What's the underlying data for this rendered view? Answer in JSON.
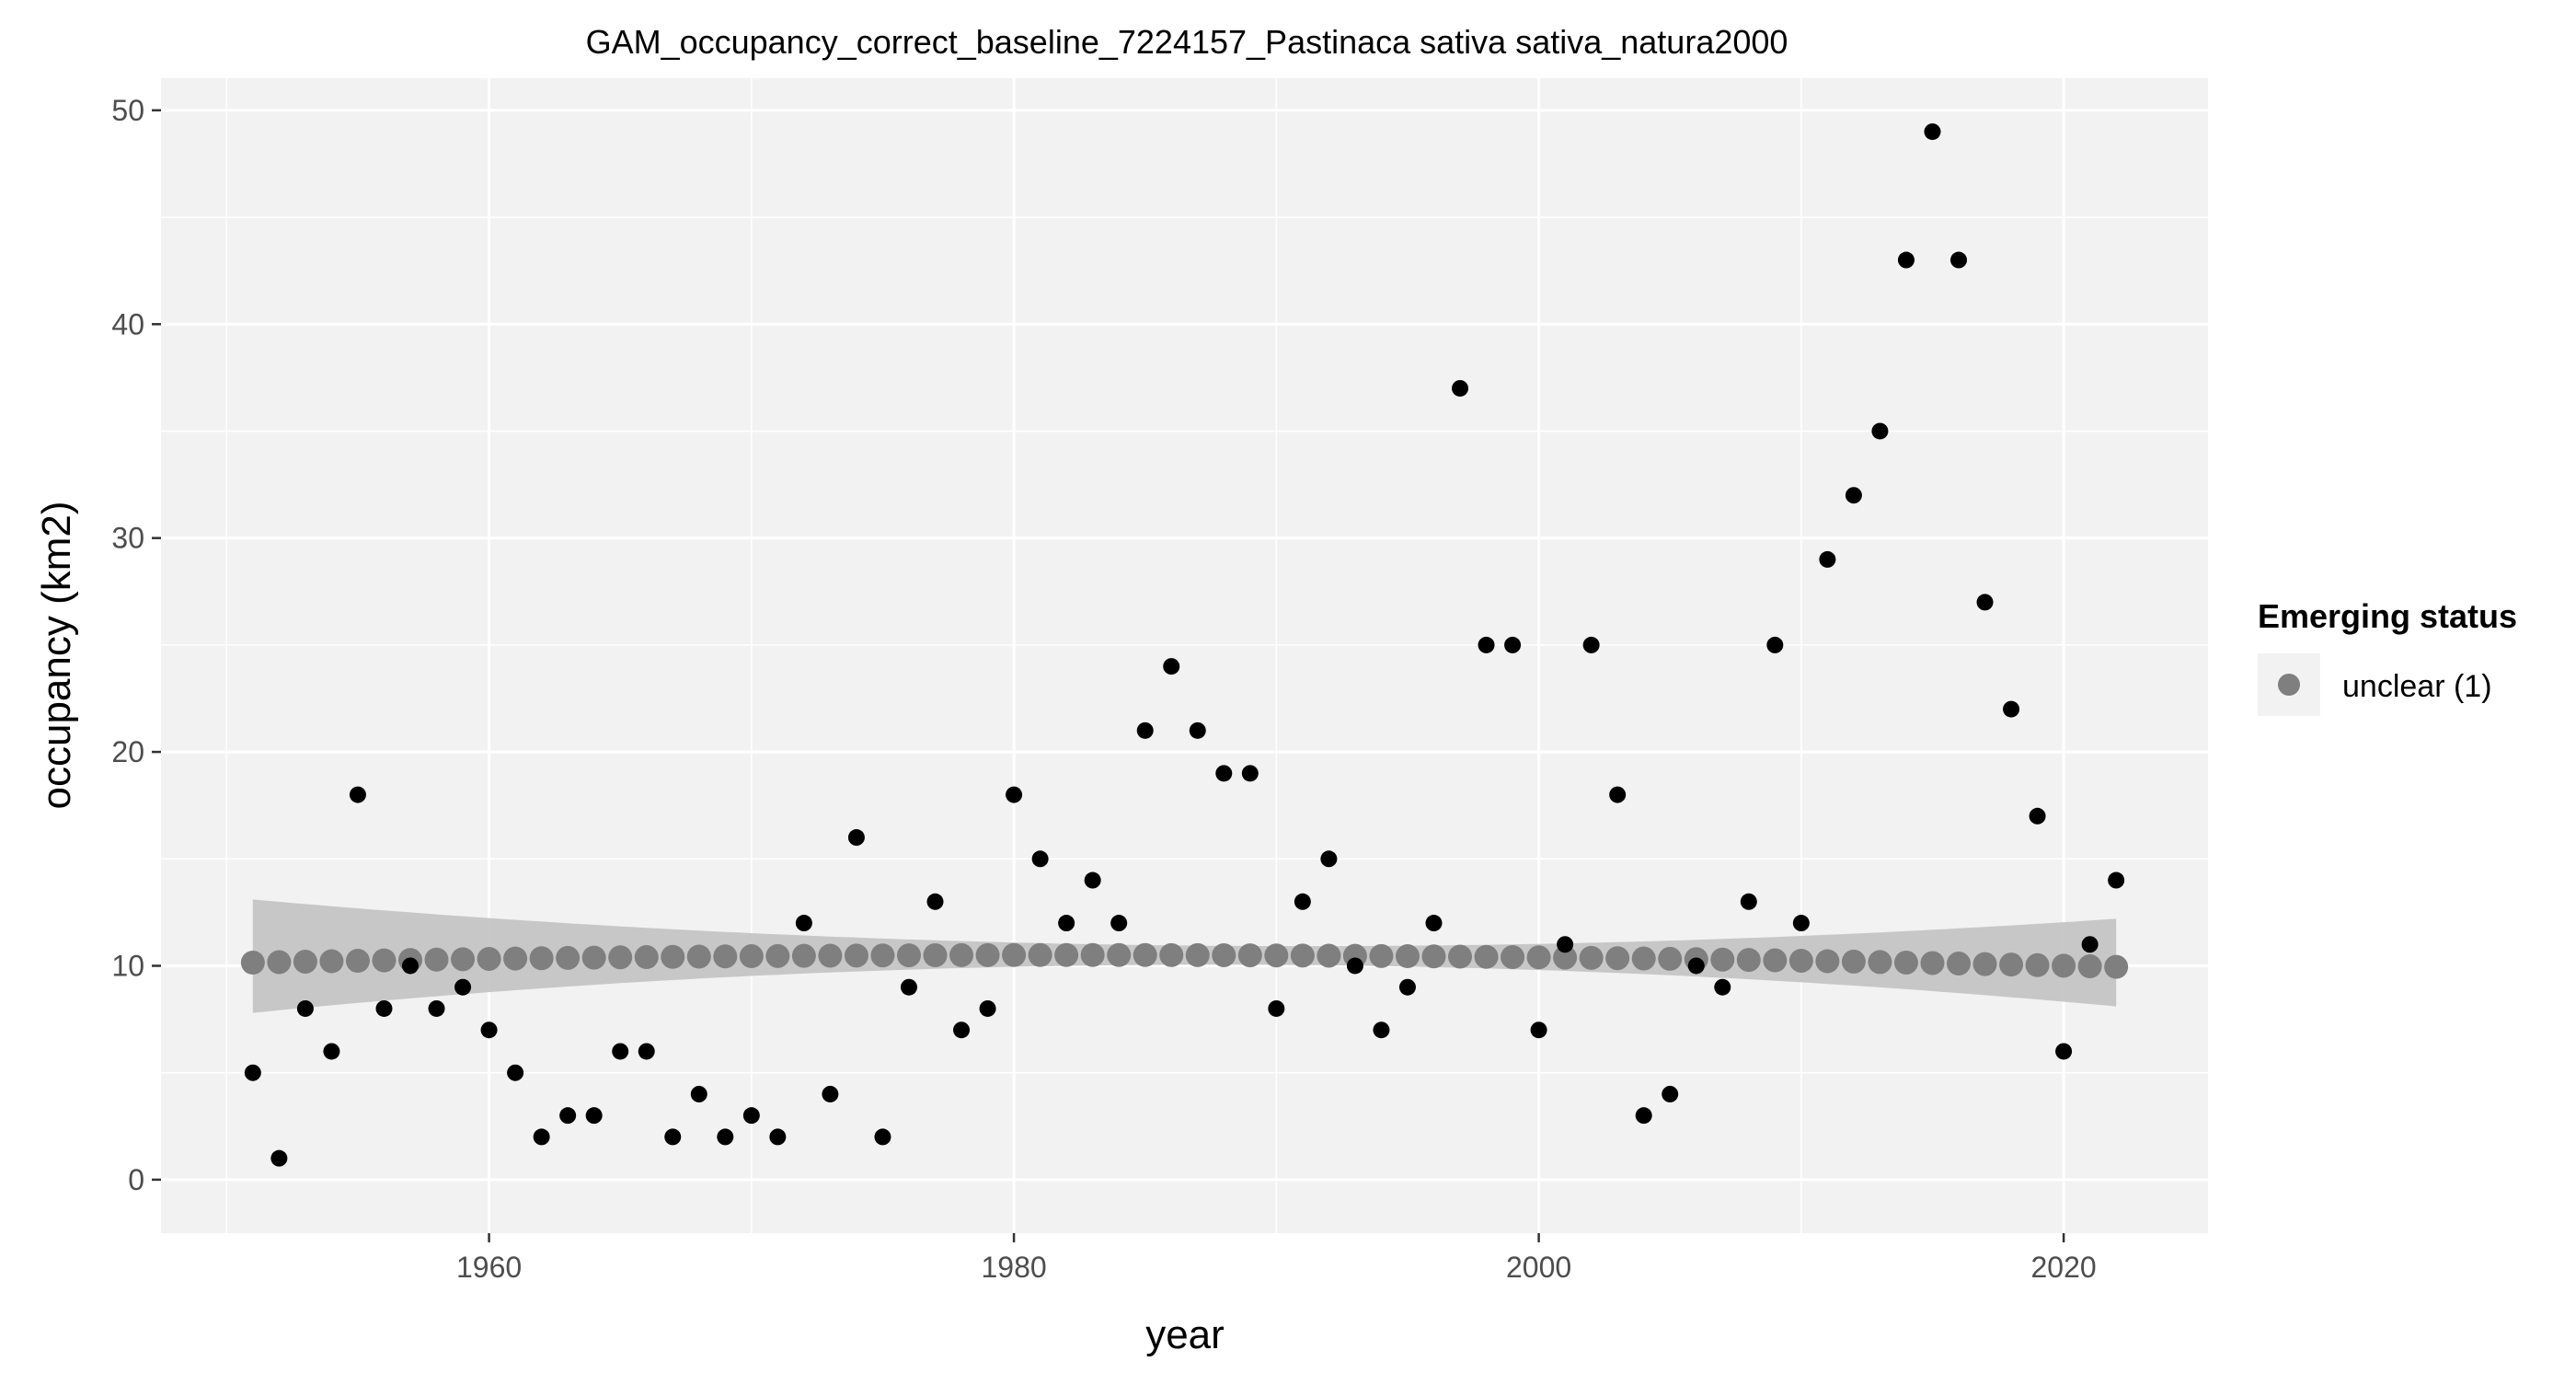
{
  "chart_data": {
    "type": "scatter",
    "title": "GAM_occupancy_correct_baseline_7224157_Pastinaca sativa sativa_natura2000",
    "xlabel": "year",
    "ylabel": "occupancy (km2)",
    "xlim": [
      1947.5,
      2025.5
    ],
    "ylim": [
      -2.5,
      51.5
    ],
    "x_ticks": [
      1960,
      1980,
      2000,
      2020
    ],
    "y_ticks": [
      0,
      10,
      20,
      30,
      40,
      50
    ],
    "grid": true,
    "legend": {
      "title": "Emerging status",
      "position": "right",
      "entries": [
        {
          "label": "unclear (1)",
          "color": "#7f7f7f"
        }
      ]
    },
    "colors": {
      "panel_background": "#f2f2f2",
      "grid_line": "#ffffff",
      "observed_point": "#000000",
      "fit_point": "#7f7f7f",
      "confidence_band": "#c2c2c2"
    },
    "series": [
      {
        "kind": "observed",
        "x": [
          1951,
          1952,
          1953,
          1954,
          1955,
          1956,
          1957,
          1958,
          1959,
          1960,
          1961,
          1962,
          1963,
          1964,
          1965,
          1966,
          1967,
          1968,
          1969,
          1970,
          1971,
          1972,
          1973,
          1974,
          1975,
          1976,
          1977,
          1978,
          1979,
          1980,
          1981,
          1982,
          1983,
          1984,
          1985,
          1986,
          1987,
          1988,
          1989,
          1990,
          1991,
          1992,
          1993,
          1994,
          1995,
          1996,
          1997,
          1998,
          1999,
          2000,
          2001,
          2002,
          2003,
          2004,
          2005,
          2006,
          2007,
          2008,
          2009,
          2010,
          2011,
          2012,
          2013,
          2014,
          2015,
          2016,
          2017,
          2018,
          2019,
          2020,
          2021,
          2022
        ],
        "y": [
          5,
          1,
          8,
          6,
          18,
          8,
          10,
          8,
          9,
          7,
          5,
          2,
          3,
          3,
          6,
          6,
          2,
          4,
          2,
          3,
          2,
          12,
          4,
          16,
          2,
          9,
          13,
          7,
          8,
          18,
          15,
          12,
          14,
          12,
          21,
          24,
          21,
          19,
          19,
          8,
          13,
          15,
          10,
          7,
          9,
          12,
          37,
          25,
          25,
          7,
          11,
          25,
          18,
          3,
          4,
          10,
          9,
          13,
          25,
          12,
          29,
          32,
          35,
          43,
          49,
          43,
          27,
          22,
          17,
          6,
          11,
          14
        ]
      },
      {
        "kind": "fit",
        "x_start": 1951,
        "x_end": 2022,
        "fit": {
          "start": 10.15,
          "mid": 10.5,
          "end": 9.95
        },
        "lower": {
          "start": 7.8,
          "mid": 10.05,
          "end": 8.1
        },
        "upper": {
          "start": 13.1,
          "mid": 10.95,
          "end": 12.2
        }
      }
    ]
  }
}
